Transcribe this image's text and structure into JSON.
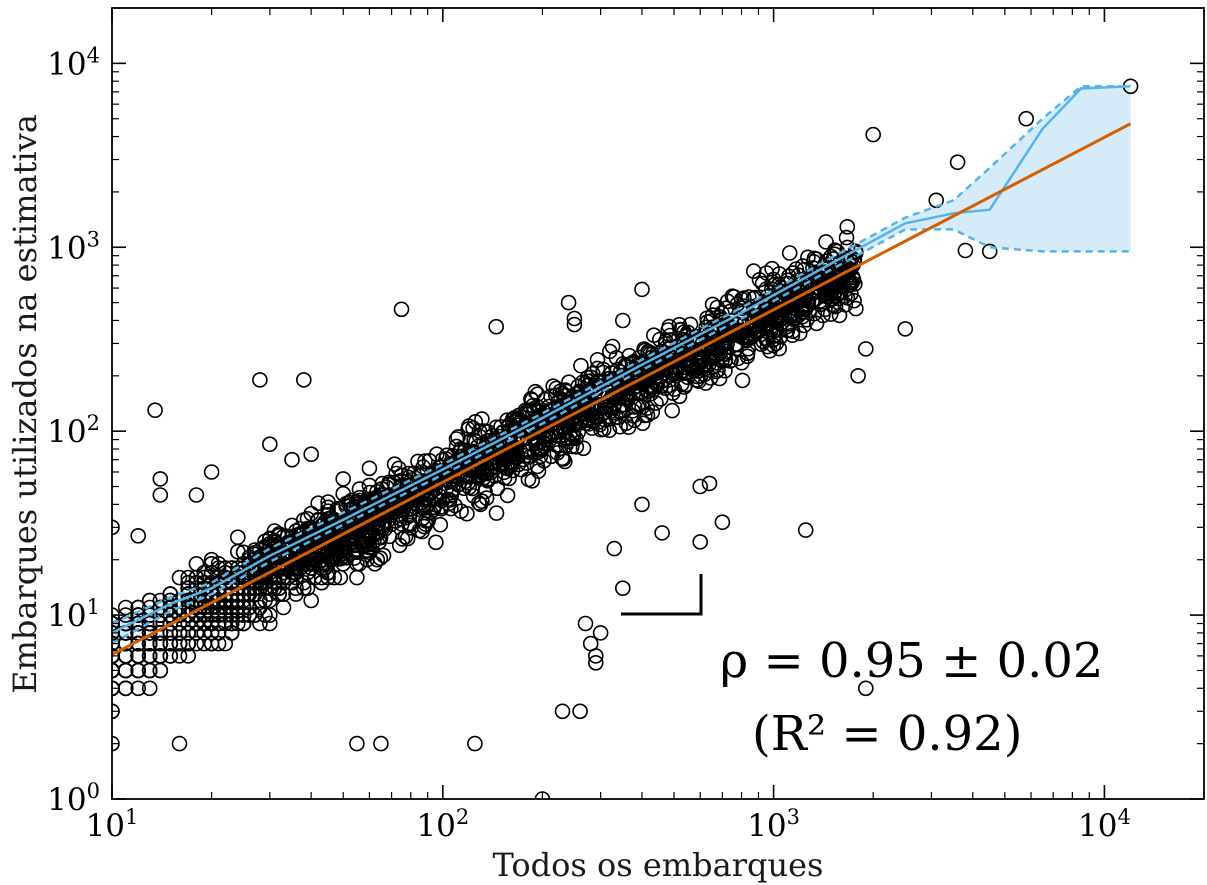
{
  "chart_data": {
    "type": "scatter",
    "xlabel": "Todos os embarques",
    "ylabel": "Embarques utilizados na estimativa",
    "xscale": "log",
    "yscale": "log",
    "xlim": [
      10,
      20000
    ],
    "ylim": [
      1,
      20000
    ],
    "x_ticks": [
      {
        "value": 10,
        "base": "10",
        "exp": "1"
      },
      {
        "value": 100,
        "base": "10",
        "exp": "2"
      },
      {
        "value": 1000,
        "base": "10",
        "exp": "3"
      },
      {
        "value": 10000,
        "base": "10",
        "exp": "4"
      }
    ],
    "y_ticks": [
      {
        "value": 1,
        "base": "10",
        "exp": "0"
      },
      {
        "value": 10,
        "base": "10",
        "exp": "1"
      },
      {
        "value": 100,
        "base": "10",
        "exp": "2"
      },
      {
        "value": 1000,
        "base": "10",
        "exp": "3"
      },
      {
        "value": 10000,
        "base": "10",
        "exp": "4"
      }
    ],
    "grid": false,
    "colors": {
      "fit": "#d35f00",
      "median": "#56b4e9",
      "band": "#d6ebf9",
      "points": "#000000"
    },
    "fit_line": {
      "x": [
        10,
        12000
      ],
      "y": [
        6.1,
        4700
      ]
    },
    "median_line": {
      "x": [
        10,
        15,
        20,
        30,
        50,
        100,
        200,
        400,
        800,
        1500,
        2500,
        3500,
        4500,
        6500,
        8500,
        12000
      ],
      "y": [
        8,
        11.5,
        14,
        21,
        33,
        62,
        118,
        230,
        440,
        820,
        1350,
        1530,
        1600,
        4400,
        7300,
        7500
      ]
    },
    "band_upper": {
      "x": [
        10,
        15,
        20,
        30,
        50,
        100,
        200,
        400,
        800,
        1500,
        2500,
        3500,
        4500,
        6500,
        8500,
        12000
      ],
      "y": [
        9,
        12.5,
        15,
        23,
        36,
        66,
        125,
        245,
        470,
        880,
        1450,
        1800,
        2700,
        5000,
        7500,
        7500
      ]
    },
    "band_lower": {
      "x": [
        10,
        15,
        20,
        30,
        50,
        100,
        200,
        400,
        800,
        1500,
        2500,
        3500,
        4500,
        6500,
        8500,
        12000
      ],
      "y": [
        7,
        10.5,
        13,
        19.5,
        31,
        58,
        110,
        215,
        410,
        760,
        1250,
        1250,
        1000,
        950,
        950,
        950
      ]
    },
    "outliers": {
      "x": [
        12000,
        5800,
        2000,
        3600,
        3100,
        13.5,
        14,
        18,
        28,
        38,
        30,
        40,
        75,
        145,
        250,
        350,
        400,
        10,
        12,
        14,
        20,
        35,
        50,
        60,
        130,
        240,
        250,
        200,
        230,
        350,
        10,
        16,
        55,
        65,
        125,
        260,
        300,
        600,
        640,
        1250,
        1800,
        1900,
        2500,
        3800,
        4500,
        600,
        700,
        400,
        330,
        460,
        270,
        280,
        290,
        290,
        1900
      ],
      "y": [
        7500,
        5000,
        4100,
        2900,
        1800,
        130,
        55,
        45,
        190,
        190,
        85,
        75,
        460,
        370,
        380,
        400,
        590,
        30,
        27,
        45,
        60,
        70,
        55,
        42,
        40,
        500,
        410,
        1,
        3,
        14,
        2,
        2,
        2,
        2,
        2,
        3,
        8,
        50,
        52,
        29,
        200,
        280,
        360,
        960,
        950,
        25,
        32,
        40,
        23,
        28,
        9,
        7,
        6,
        5.5,
        4
      ]
    },
    "annotation_lines": [
      "ρ = 0.95 ± 0.02",
      "(R² = 0.92)"
    ]
  }
}
